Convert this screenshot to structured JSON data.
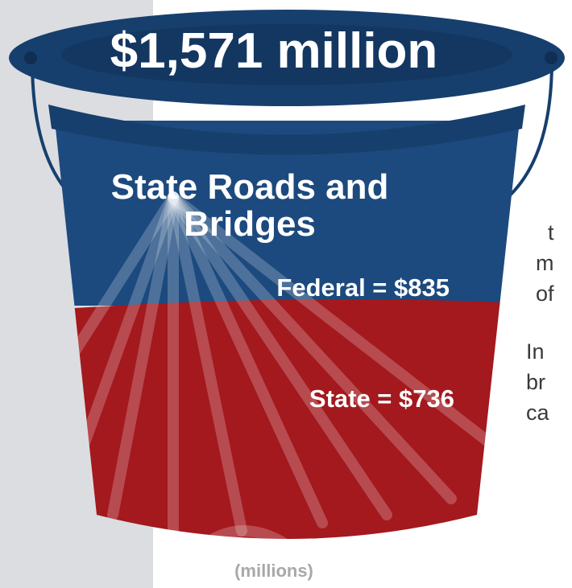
{
  "bucket": {
    "total_label": "$1,571 million",
    "title": "State Roads and Bridges",
    "units_label": "(millions)",
    "colors": {
      "federal": "#1c4a7e",
      "state": "#a3191e",
      "rim": "#163f6d",
      "background_panel": "#dcdde0"
    }
  },
  "funding": [
    {
      "label": "Federal = $835",
      "source": "Federal",
      "value": 835
    },
    {
      "label": "State = $736",
      "source": "State",
      "value": 736
    }
  ],
  "side_text_fragments": [
    "t",
    "m",
    "of",
    "In",
    "br",
    "ca"
  ],
  "chart_data": {
    "type": "bar",
    "title": "State Roads and Bridges",
    "categories": [
      "Federal",
      "State"
    ],
    "values": [
      835,
      736
    ],
    "total": 1571,
    "ylabel": "(millions)"
  }
}
